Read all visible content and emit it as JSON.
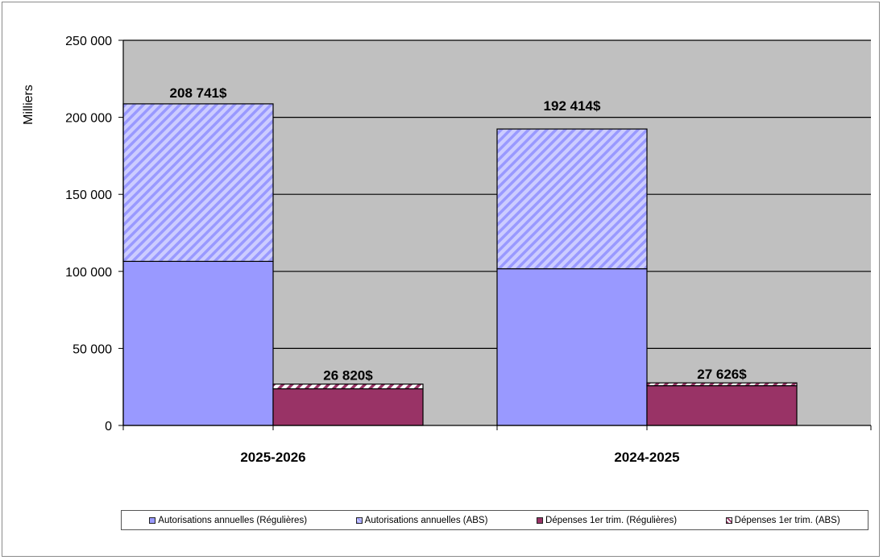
{
  "chart_data": {
    "type": "bar",
    "stacked": true,
    "ylabel": "Milliers",
    "ylim": [
      0,
      250000
    ],
    "yticks": [
      0,
      50000,
      100000,
      150000,
      200000,
      250000
    ],
    "ytick_labels": [
      "0",
      "50 000",
      "100 000",
      "150 000",
      "200 000",
      "250 000"
    ],
    "categories": [
      "2025-2026",
      "2024-2025"
    ],
    "grid": true,
    "legend_position": "bottom",
    "groups": [
      {
        "name": "Autorisations annuelles",
        "total_labels": [
          "208 741$",
          "192 414$"
        ],
        "series": [
          {
            "name": "Autorisations annuelles (Régulières)",
            "values": [
              106500,
              101700
            ],
            "color": "#9999ff",
            "pattern": "solid"
          },
          {
            "name": "Autorisations annuelles (ABS)",
            "values": [
              102241,
              90714
            ],
            "color": "#ccccff",
            "pattern": "hatch"
          }
        ]
      },
      {
        "name": "Dépenses 1er trim.",
        "total_labels": [
          "26 820$",
          "27 626$"
        ],
        "series": [
          {
            "name": "Dépenses 1er trim. (Régulières)",
            "values": [
              23800,
              25800
            ],
            "color": "#993366",
            "pattern": "solid"
          },
          {
            "name": "Dépenses 1er trim. (ABS)",
            "values": [
              3020,
              1826
            ],
            "color": "#993366",
            "pattern": "hatch"
          }
        ]
      }
    ],
    "plot_background": "#c0c0c0"
  }
}
